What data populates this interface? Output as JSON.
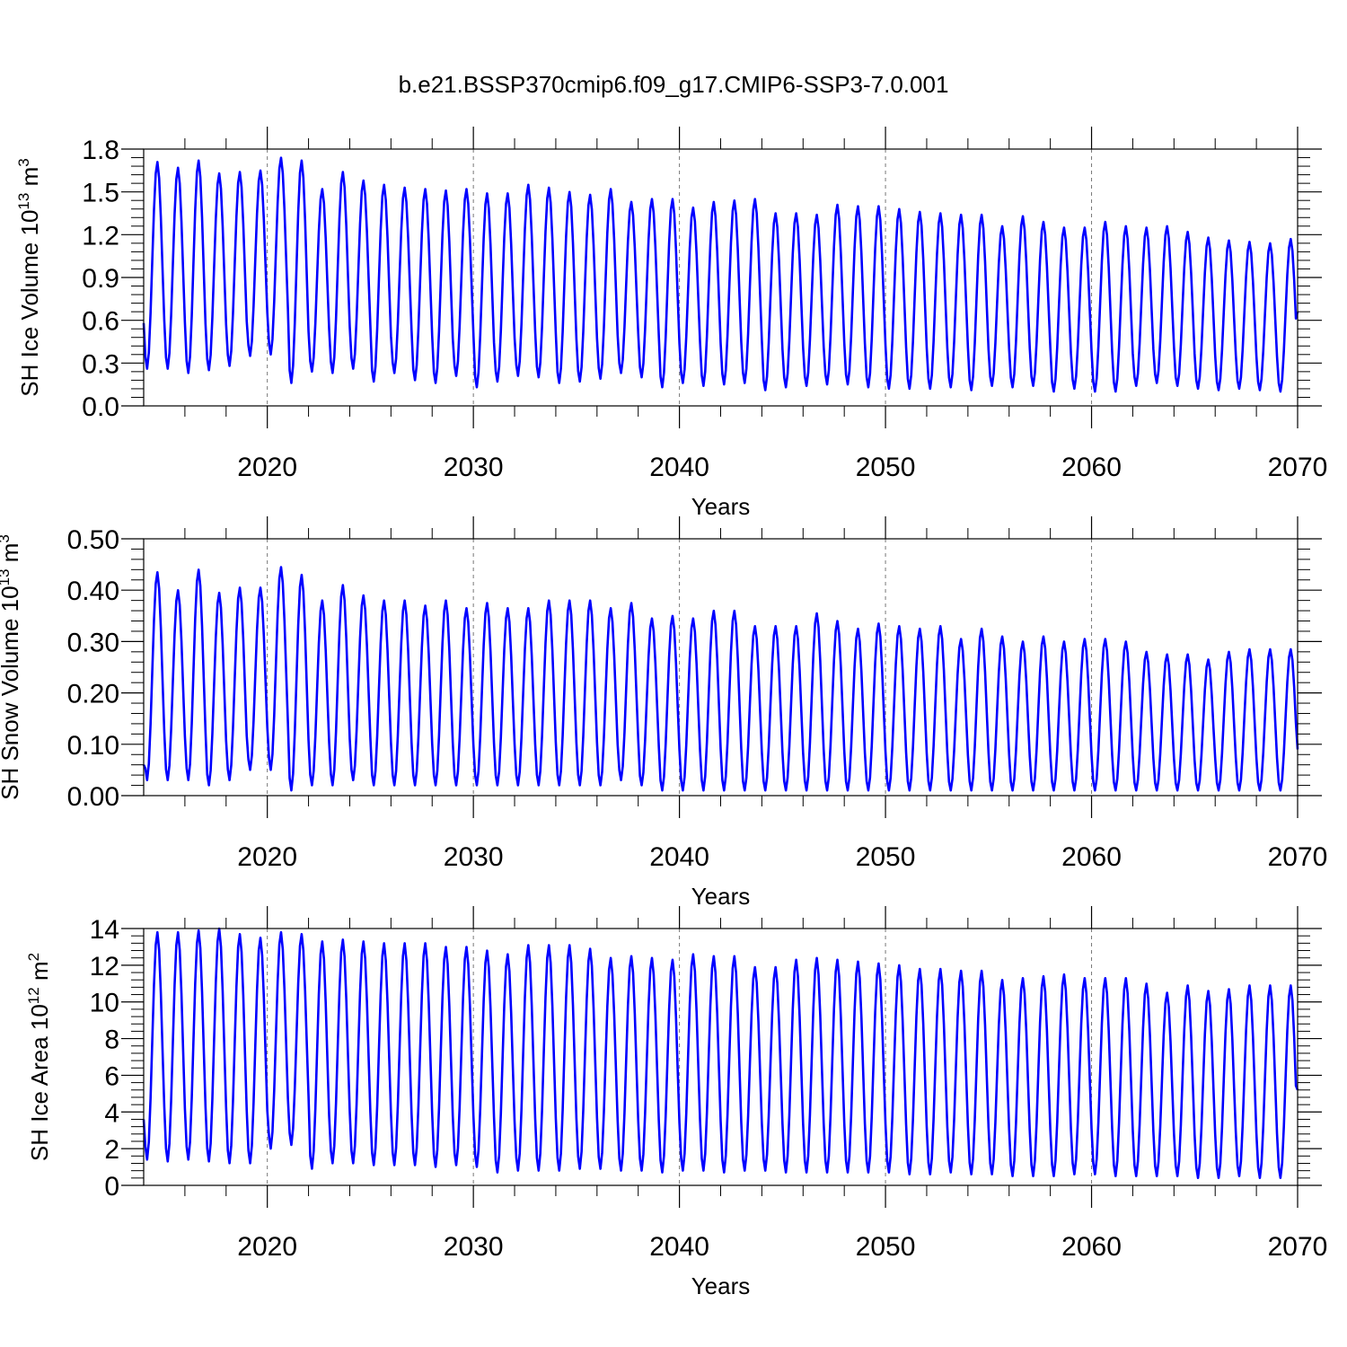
{
  "title": "b.e21.BSSP370cmip6.f09_g17.CMIP6-SSP3-7.0.001",
  "colors": {
    "series": "#0000ff",
    "axes": "#000000",
    "grid": "#777777"
  },
  "chart_data": [
    {
      "type": "line",
      "xlabel": "Years",
      "ylabel": "SH Ice Volume 10",
      "ylabel_exp": "13",
      "ylabel_unit": " m",
      "ylabel_unit_exp": "3",
      "xlim": [
        2014.0,
        2070.0
      ],
      "ylim": [
        0.0,
        1.8
      ],
      "xticks": [
        2020,
        2030,
        2040,
        2050,
        2060,
        2070
      ],
      "xtick_labels": [
        "2020",
        "2030",
        "2040",
        "2050",
        "2060",
        "2070"
      ],
      "yticks": [
        0.0,
        0.3,
        0.6,
        0.9,
        1.2,
        1.5,
        1.8
      ],
      "ytick_labels": [
        "0.0",
        "0.3",
        "0.6",
        "0.9",
        "1.2",
        "1.5",
        "1.8"
      ],
      "grid": "vertical dashed at decades",
      "series": [
        {
          "name": "SH Ice Volume",
          "start_year": 2014.0,
          "end_year": 2070.0,
          "start_value": 0.58,
          "end_value": 0.66,
          "annual_max": [
            1.71,
            1.67,
            1.72,
            1.63,
            1.64,
            1.65,
            1.74,
            1.72,
            1.52,
            1.64,
            1.58,
            1.55,
            1.53,
            1.52,
            1.51,
            1.52,
            1.49,
            1.49,
            1.55,
            1.53,
            1.5,
            1.48,
            1.52,
            1.43,
            1.45,
            1.45,
            1.39,
            1.43,
            1.44,
            1.45,
            1.35,
            1.35,
            1.34,
            1.41,
            1.4,
            1.4,
            1.38,
            1.36,
            1.35,
            1.34,
            1.34,
            1.26,
            1.33,
            1.29,
            1.25,
            1.25,
            1.29,
            1.26,
            1.25,
            1.26,
            1.22,
            1.18,
            1.16,
            1.15,
            1.14,
            1.17
          ],
          "annual_min": [
            0.26,
            0.26,
            0.23,
            0.25,
            0.28,
            0.35,
            0.36,
            0.16,
            0.24,
            0.23,
            0.26,
            0.17,
            0.23,
            0.18,
            0.16,
            0.21,
            0.13,
            0.17,
            0.21,
            0.2,
            0.16,
            0.17,
            0.19,
            0.23,
            0.2,
            0.13,
            0.16,
            0.14,
            0.15,
            0.16,
            0.11,
            0.13,
            0.14,
            0.15,
            0.15,
            0.13,
            0.12,
            0.12,
            0.12,
            0.13,
            0.11,
            0.14,
            0.13,
            0.14,
            0.1,
            0.12,
            0.1,
            0.1,
            0.14,
            0.16,
            0.14,
            0.12,
            0.11,
            0.12,
            0.11,
            0.1
          ]
        }
      ]
    },
    {
      "type": "line",
      "xlabel": "Years",
      "ylabel": "SH Snow Volume 10",
      "ylabel_exp": "13",
      "ylabel_unit": " m",
      "ylabel_unit_exp": "3",
      "xlim": [
        2014.0,
        2070.0
      ],
      "ylim": [
        0.0,
        0.5
      ],
      "xticks": [
        2020,
        2030,
        2040,
        2050,
        2060,
        2070
      ],
      "xtick_labels": [
        "2020",
        "2030",
        "2040",
        "2050",
        "2060",
        "2070"
      ],
      "yticks": [
        0.0,
        0.1,
        0.2,
        0.3,
        0.4,
        0.5
      ],
      "ytick_labels": [
        "0.00",
        "0.10",
        "0.20",
        "0.30",
        "0.40",
        "0.50"
      ],
      "grid": "vertical dashed at decades",
      "series": [
        {
          "name": "SH Snow Volume",
          "start_year": 2014.0,
          "end_year": 2070.0,
          "start_value": 0.06,
          "end_value": 0.09,
          "annual_max": [
            0.435,
            0.4,
            0.44,
            0.395,
            0.405,
            0.405,
            0.445,
            0.43,
            0.38,
            0.41,
            0.39,
            0.38,
            0.38,
            0.37,
            0.38,
            0.365,
            0.375,
            0.365,
            0.365,
            0.38,
            0.38,
            0.38,
            0.365,
            0.375,
            0.345,
            0.35,
            0.345,
            0.36,
            0.36,
            0.33,
            0.33,
            0.33,
            0.355,
            0.34,
            0.325,
            0.335,
            0.33,
            0.325,
            0.33,
            0.305,
            0.325,
            0.31,
            0.3,
            0.31,
            0.3,
            0.305,
            0.305,
            0.3,
            0.28,
            0.275,
            0.275,
            0.265,
            0.28,
            0.285,
            0.285,
            0.285
          ],
          "annual_min": [
            0.03,
            0.03,
            0.03,
            0.02,
            0.03,
            0.05,
            0.05,
            0.01,
            0.02,
            0.02,
            0.03,
            0.02,
            0.02,
            0.02,
            0.02,
            0.02,
            0.02,
            0.02,
            0.02,
            0.02,
            0.02,
            0.02,
            0.02,
            0.03,
            0.02,
            0.01,
            0.01,
            0.01,
            0.01,
            0.01,
            0.01,
            0.01,
            0.01,
            0.01,
            0.01,
            0.01,
            0.01,
            0.01,
            0.01,
            0.01,
            0.01,
            0.01,
            0.01,
            0.01,
            0.01,
            0.01,
            0.01,
            0.01,
            0.01,
            0.01,
            0.01,
            0.01,
            0.01,
            0.01,
            0.01,
            0.01
          ]
        }
      ]
    },
    {
      "type": "line",
      "xlabel": "Years",
      "ylabel": "SH Ice Area 10",
      "ylabel_exp": "12",
      "ylabel_unit": " m",
      "ylabel_unit_exp": "2",
      "xlim": [
        2014.0,
        2070.0
      ],
      "ylim": [
        0,
        14
      ],
      "xticks": [
        2020,
        2030,
        2040,
        2050,
        2060,
        2070
      ],
      "xtick_labels": [
        "2020",
        "2030",
        "2040",
        "2050",
        "2060",
        "2070"
      ],
      "yticks": [
        0,
        2,
        4,
        6,
        8,
        10,
        12,
        14
      ],
      "ytick_labels": [
        "0",
        "2",
        "4",
        "6",
        "8",
        "10",
        "12",
        "14"
      ],
      "grid": "vertical dashed at decades",
      "series": [
        {
          "name": "SH Ice Area",
          "start_year": 2014.0,
          "end_year": 2070.0,
          "start_value": 3.6,
          "end_value": 5.2,
          "annual_max": [
            13.8,
            13.8,
            13.9,
            14.0,
            13.7,
            13.5,
            13.8,
            13.7,
            13.3,
            13.4,
            13.3,
            13.2,
            13.2,
            13.2,
            13.0,
            13.0,
            12.8,
            12.6,
            13.1,
            13.1,
            13.1,
            12.9,
            12.4,
            12.5,
            12.4,
            12.3,
            12.6,
            12.5,
            12.5,
            11.9,
            11.9,
            12.3,
            12.4,
            12.3,
            12.2,
            12.1,
            12.0,
            11.8,
            11.8,
            11.7,
            11.7,
            11.2,
            11.3,
            11.4,
            11.5,
            11.3,
            11.3,
            11.3,
            11.0,
            10.5,
            10.9,
            10.6,
            10.7,
            10.9,
            10.9,
            10.9
          ],
          "annual_min": [
            1.4,
            1.3,
            1.4,
            1.3,
            1.2,
            1.2,
            2.0,
            2.2,
            0.9,
            1.2,
            1.2,
            1.1,
            1.1,
            1.1,
            1.0,
            1.1,
            1.0,
            0.7,
            0.8,
            0.8,
            0.8,
            0.9,
            0.9,
            0.8,
            0.8,
            0.7,
            0.8,
            0.8,
            0.7,
            0.8,
            0.8,
            0.7,
            0.7,
            0.7,
            0.7,
            0.7,
            0.7,
            0.6,
            0.6,
            0.7,
            0.6,
            0.6,
            0.5,
            0.5,
            0.5,
            0.6,
            0.6,
            0.5,
            0.5,
            0.5,
            0.5,
            0.4,
            0.4,
            0.5,
            0.4,
            0.4
          ]
        }
      ]
    }
  ]
}
